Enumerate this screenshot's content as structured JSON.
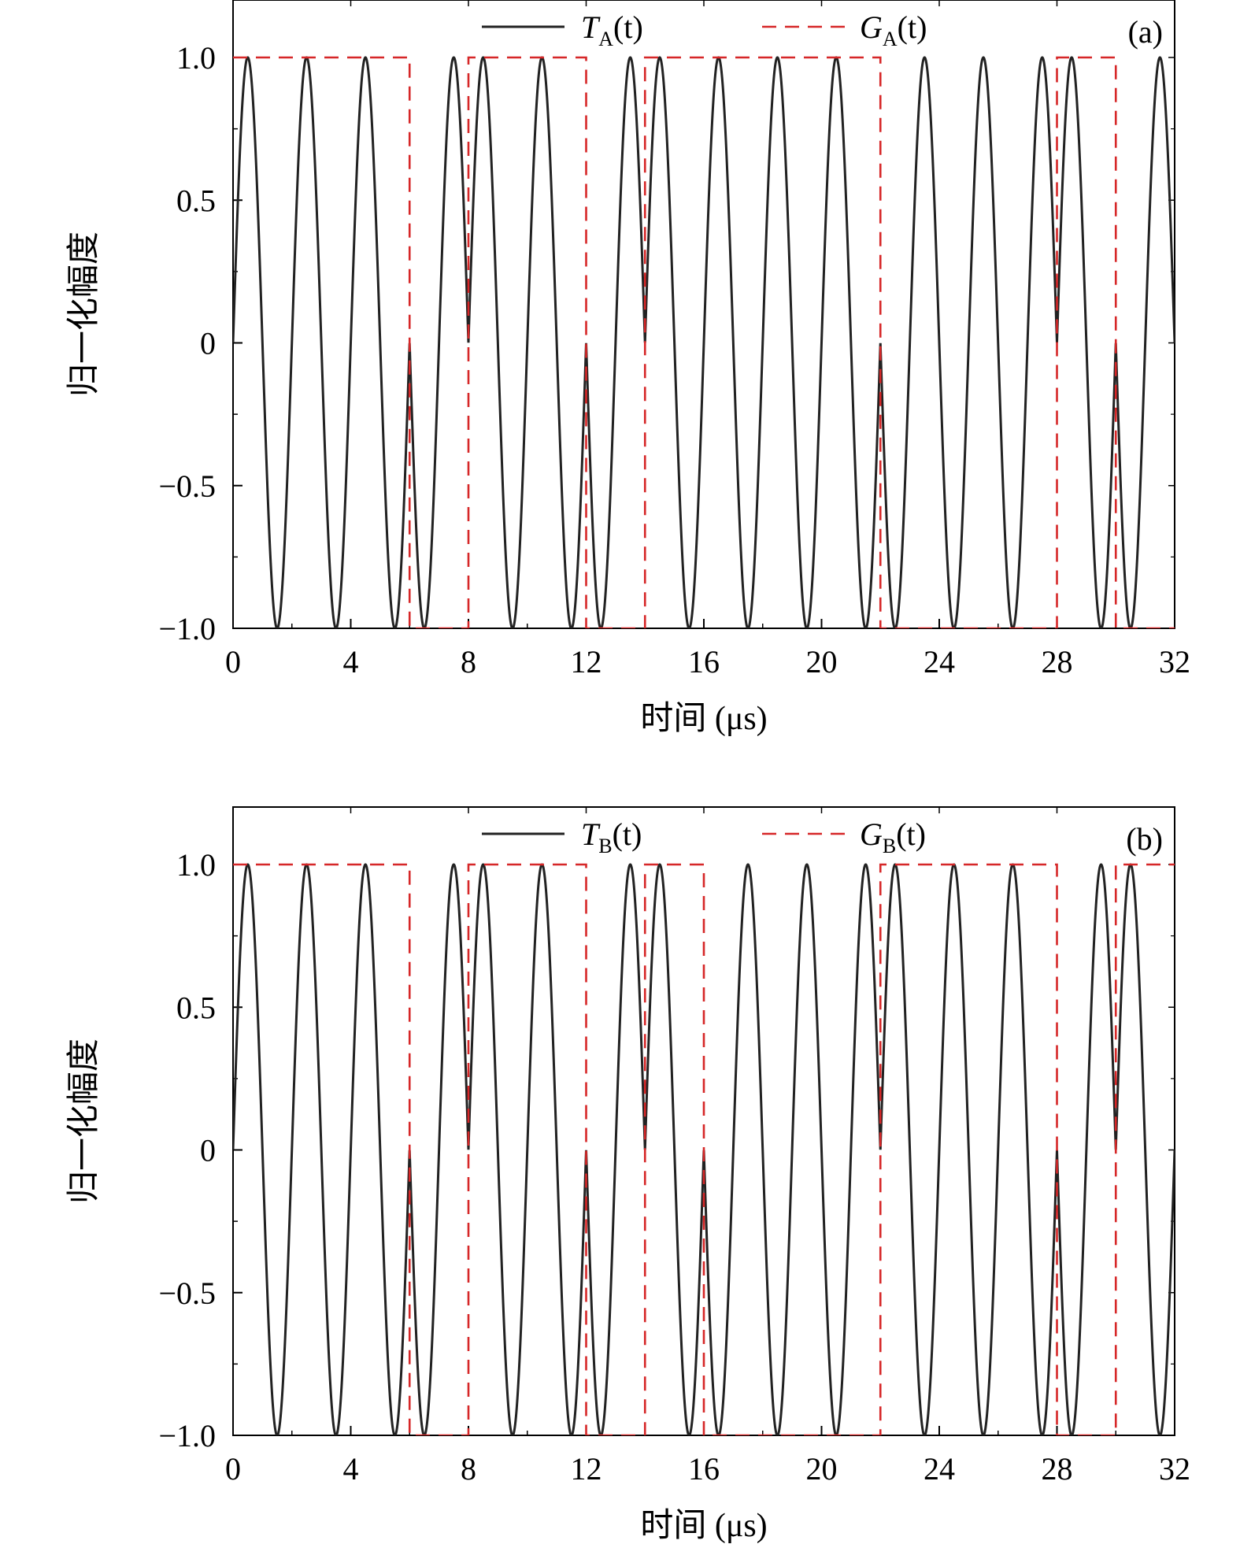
{
  "chart_data": [
    {
      "type": "line",
      "panel_label": "(a)",
      "xlabel": "时间 (μs)",
      "ylabel": "归一化幅度",
      "xlim": [
        0,
        32
      ],
      "ylim": [
        -1.0,
        1.2
      ],
      "x_ticks": [
        "0",
        "4",
        "8",
        "12",
        "16",
        "20",
        "24",
        "28",
        "32"
      ],
      "y_ticks": [
        "−1.0",
        "−0.5",
        "0",
        "0.5",
        "1.0"
      ],
      "grid": false,
      "legend_placement": "top",
      "series": [
        {
          "legend": {
            "main": "T",
            "sub": "A",
            "arg": "(t)"
          },
          "style": "solid",
          "color": "#222222",
          "description": "cos/sin carrier with period 2 μs and π phase flips at group-gate edges",
          "period": 2,
          "phase_flip_times": [
            6,
            8,
            12,
            14,
            22,
            28,
            30
          ]
        },
        {
          "legend": {
            "main": "G",
            "sub": "A",
            "arg": "(t)"
          },
          "style": "dashed",
          "color": "#d62728",
          "x": [
            0,
            6,
            6,
            8,
            8,
            12,
            12,
            14,
            14,
            22,
            22,
            28,
            28,
            30,
            30,
            32
          ],
          "y": [
            1,
            1,
            -1,
            -1,
            1,
            1,
            -1,
            -1,
            1,
            1,
            -1,
            -1,
            1,
            1,
            -1,
            -1
          ]
        }
      ]
    },
    {
      "type": "line",
      "panel_label": "(b)",
      "xlabel": "时间 (μs)",
      "ylabel": "归一化幅度",
      "xlim": [
        0,
        32
      ],
      "ylim": [
        -1.0,
        1.2
      ],
      "x_ticks": [
        "0",
        "4",
        "8",
        "12",
        "16",
        "20",
        "24",
        "28",
        "32"
      ],
      "y_ticks": [
        "−1.0",
        "−0.5",
        "0",
        "0.5",
        "1.0"
      ],
      "grid": false,
      "legend_placement": "top",
      "series": [
        {
          "legend": {
            "main": "T",
            "sub": "B",
            "arg": "(t)"
          },
          "style": "solid",
          "color": "#222222",
          "period": 2,
          "phase_flip_times": [
            6,
            8,
            12,
            14,
            16,
            22,
            28,
            30
          ]
        },
        {
          "legend": {
            "main": "G",
            "sub": "B",
            "arg": "(t)"
          },
          "style": "dashed",
          "color": "#d62728",
          "x": [
            0,
            6,
            6,
            8,
            8,
            12,
            12,
            14,
            14,
            16,
            16,
            22,
            22,
            28,
            28,
            30,
            30,
            32
          ],
          "y": [
            1,
            1,
            -1,
            -1,
            1,
            1,
            -1,
            -1,
            1,
            1,
            -1,
            -1,
            1,
            1,
            -1,
            -1,
            1,
            1
          ]
        }
      ]
    }
  ]
}
